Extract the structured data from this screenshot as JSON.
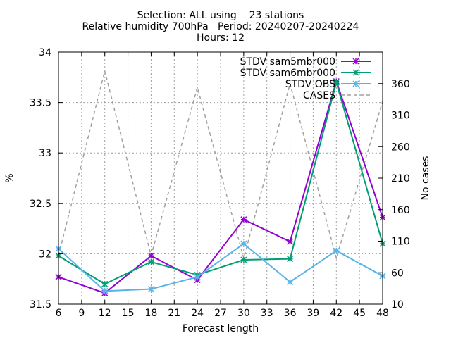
{
  "chart_data": {
    "type": "line",
    "title_lines": [
      "Selection: ALL using    23 stations",
      "Relative humidity 700hPa   Period: 20240207-20240224",
      "Hours: 12"
    ],
    "xlabel": "Forecast length",
    "ylabel": "%",
    "y2label": "No cases",
    "x": [
      6,
      12,
      18,
      24,
      30,
      36,
      42,
      48
    ],
    "xticks": [
      6,
      9,
      12,
      15,
      18,
      21,
      24,
      27,
      30,
      33,
      36,
      39,
      42,
      45,
      48
    ],
    "xlim": [
      6,
      48
    ],
    "ylim": [
      31.5,
      34
    ],
    "yticks": [
      "31.5",
      "32",
      "32.5",
      "33",
      "33.5",
      "34"
    ],
    "y2lim": [
      10,
      410
    ],
    "y2ticks": [
      "10",
      "60",
      "110",
      "160",
      "210",
      "260",
      "310",
      "360"
    ],
    "grid": true,
    "legend_position": "top-right",
    "series": [
      {
        "name": "STDV sam5mbr000",
        "axis": "y",
        "color": "#9400d3",
        "style": "solid",
        "marker": "x-star",
        "values": [
          31.77,
          31.61,
          31.98,
          31.74,
          32.34,
          32.12,
          33.71,
          32.36
        ]
      },
      {
        "name": "STDV sam6mbr000",
        "axis": "y",
        "color": "#009e73",
        "style": "solid",
        "marker": "x-star",
        "values": [
          31.98,
          31.7,
          31.92,
          31.79,
          31.94,
          31.95,
          33.7,
          32.1
        ]
      },
      {
        "name": "STDV OBS",
        "axis": "y",
        "color": "#56b4e9",
        "style": "solid",
        "marker": "x-star",
        "values": [
          32.05,
          31.63,
          31.65,
          31.77,
          32.1,
          31.72,
          32.03,
          31.78
        ]
      },
      {
        "name": "CASES",
        "axis": "y2",
        "color": "#a0a0a0",
        "style": "dashed",
        "marker": "none",
        "values": [
          87,
          380,
          87,
          354,
          83,
          360,
          83,
          332
        ]
      }
    ]
  }
}
